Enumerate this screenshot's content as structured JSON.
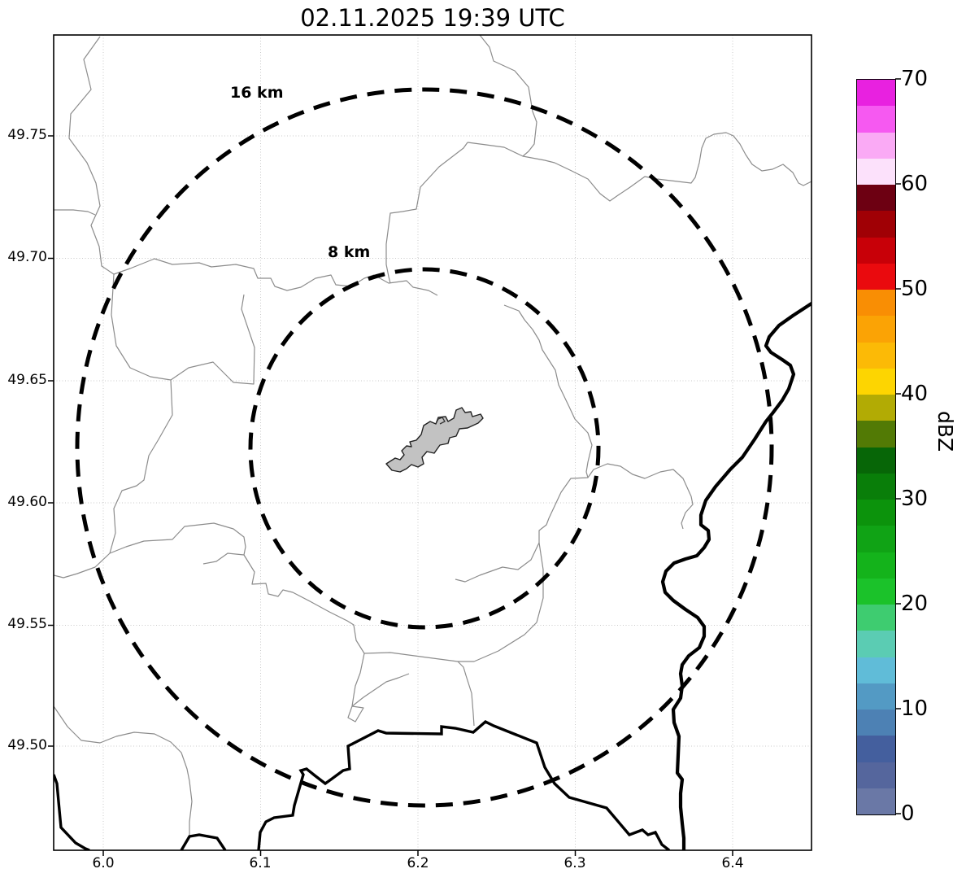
{
  "title": "02.11.2025 19:39 UTC",
  "map": {
    "x_ticks": [
      "6.0",
      "6.1",
      "6.2",
      "6.3",
      "6.4"
    ],
    "y_ticks": [
      "49.75",
      "49.70",
      "49.65",
      "49.60",
      "49.55",
      "49.50"
    ],
    "range_rings": [
      {
        "label": "16 km"
      },
      {
        "label": "8 km"
      }
    ],
    "features": {
      "country_border": "thick black angular line",
      "river_border": "thick black wavy line",
      "municipal_boundaries": "thin gray lines",
      "urban_area": "gray filled polygon"
    }
  },
  "colorbar": {
    "label": "dBZ",
    "ticks": [
      "70",
      "60",
      "50",
      "40",
      "30",
      "20",
      "10",
      "0"
    ],
    "segment_colors_top_to_bottom": [
      "#e821e0",
      "#f659f1",
      "#faaaf5",
      "#fce1fb",
      "#6d0012",
      "#a00005",
      "#c80008",
      "#ea0a0e",
      "#f98e04",
      "#fba305",
      "#fcba06",
      "#fdd501",
      "#b2ab04",
      "#527a05",
      "#076607",
      "#097e09",
      "#0c930c",
      "#10a315",
      "#14b31b",
      "#1bc22a",
      "#3ecc70",
      "#5bccb3",
      "#60bcd8",
      "#539ac4",
      "#4d81b4",
      "#445f9e",
      "#55669d",
      "#6a78a6"
    ]
  },
  "chart_data": {
    "type": "map",
    "subtype": "weather_radar_reflectivity",
    "title": "02.11.2025 19:39 UTC",
    "x_axis_ticks": [
      6.0,
      6.1,
      6.2,
      6.3,
      6.4
    ],
    "y_axis_ticks": [
      49.5,
      49.55,
      49.6,
      49.65,
      49.7,
      49.75
    ],
    "x_range": [
      5.968,
      6.45
    ],
    "y_range": [
      49.457,
      49.791
    ],
    "colorbar": {
      "label": "dBZ",
      "min": 0,
      "max": 70,
      "tick_step": 10,
      "segment_step_dbz": 2.5
    },
    "range_rings_km": [
      16,
      8
    ],
    "radar_echoes_visible": false,
    "grid": true
  }
}
